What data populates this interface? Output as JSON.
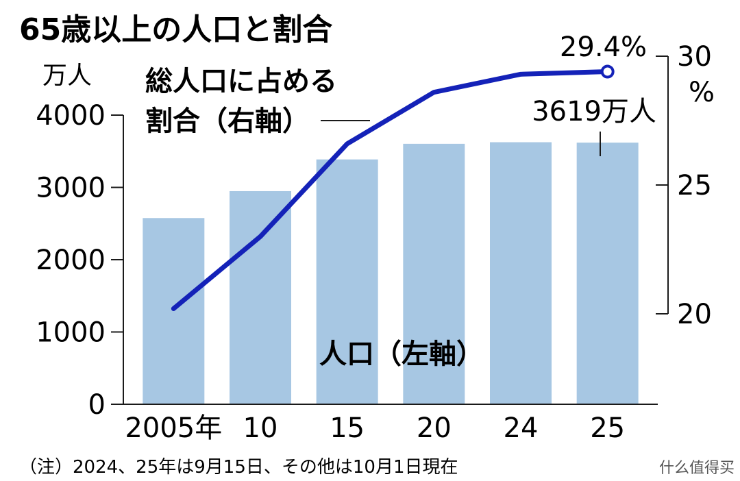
{
  "chart_data": {
    "type": "bar",
    "title": "65歳以上の人口と割合",
    "categories": [
      "2005年",
      "10",
      "15",
      "20",
      "24",
      "25"
    ],
    "series": [
      {
        "name": "人口（左軸）",
        "type": "bar",
        "axis": "left",
        "unit": "万人",
        "values": [
          2576,
          2948,
          3387,
          3603,
          3625,
          3619
        ],
        "color": "#a7c7e3"
      },
      {
        "name": "総人口に占める割合（右軸）",
        "type": "line",
        "axis": "right",
        "unit": "%",
        "values": [
          20.2,
          23.0,
          26.6,
          28.6,
          29.3,
          29.4
        ],
        "color": "#1422b8"
      }
    ],
    "left_axis": {
      "unit_label": "万人",
      "ylim": [
        0,
        4000
      ],
      "ticks": [
        "0",
        "1000",
        "2000",
        "3000",
        "4000"
      ]
    },
    "right_axis": {
      "unit_label": "%",
      "ylim": [
        20,
        30
      ],
      "ticks": [
        "20",
        "25",
        "30"
      ]
    },
    "annotations": {
      "last_ratio": "29.4%",
      "last_population": "3619万人",
      "line_label_1": "総人口に占める",
      "line_label_2": "割合（右軸）",
      "bar_label": "人口（左軸）"
    },
    "grid": false,
    "note": "（注）2024、25年は9月15日、その他は10月1日現在"
  },
  "watermark": "什么值得买"
}
